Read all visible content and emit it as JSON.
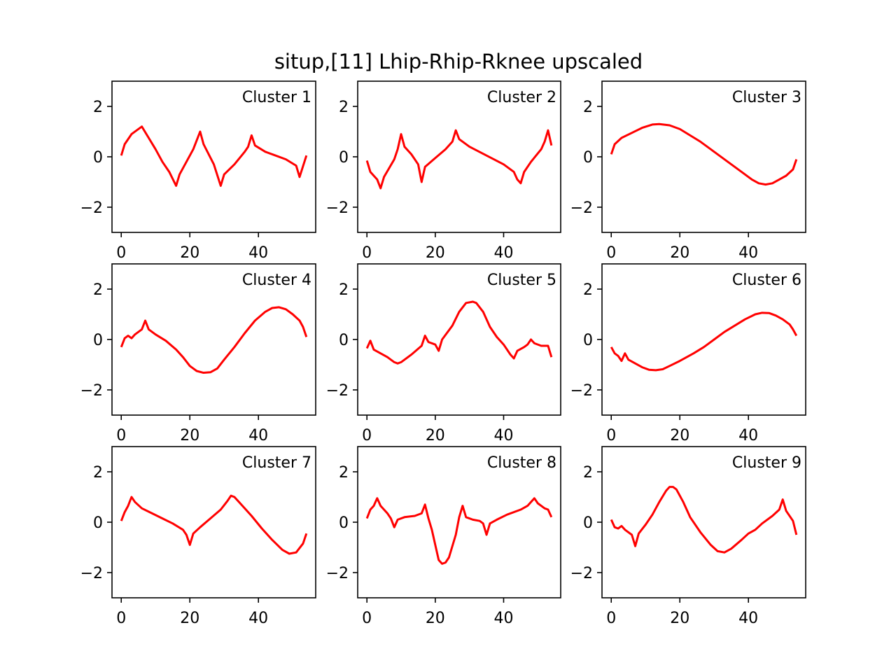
{
  "title": "situp,[11] Lhip-Rhip-Rknee upscaled",
  "chart_data": [
    {
      "type": "line",
      "title": "Cluster 1",
      "xlim": [
        -2.7,
        56.7
      ],
      "ylim": [
        -3,
        3
      ],
      "xticks": [
        0,
        20,
        40
      ],
      "yticks": [
        {
          "value": -2,
          "label": "−2"
        },
        0,
        2
      ],
      "series": [
        {
          "color": "#ff0000",
          "x": [
            0,
            1,
            3,
            6,
            8,
            10,
            12,
            14,
            16,
            17,
            19,
            21,
            23,
            24,
            27,
            29,
            30,
            33,
            36,
            37,
            38,
            39,
            42,
            45,
            48,
            51,
            52,
            54
          ],
          "values": [
            0.05,
            0.5,
            0.9,
            1.2,
            0.75,
            0.3,
            -0.2,
            -0.6,
            -1.15,
            -0.7,
            -0.2,
            0.3,
            1.0,
            0.5,
            -0.3,
            -1.15,
            -0.7,
            -0.3,
            0.2,
            0.4,
            0.85,
            0.45,
            0.2,
            0.05,
            -0.1,
            -0.35,
            -0.8,
            0.05
          ]
        }
      ]
    },
    {
      "type": "line",
      "title": "Cluster 2",
      "xlim": [
        -2.7,
        56.7
      ],
      "ylim": [
        -3,
        3
      ],
      "xticks": [
        0,
        20,
        40
      ],
      "yticks": [
        {
          "value": -2,
          "label": "−2"
        },
        0,
        2
      ],
      "series": [
        {
          "color": "#ff0000",
          "x": [
            0,
            1,
            3,
            4,
            5,
            8,
            9,
            10,
            11,
            13,
            15,
            16,
            17,
            20,
            23,
            25,
            26,
            27,
            30,
            35,
            40,
            43,
            44,
            45,
            46,
            48,
            51,
            52,
            53,
            54
          ],
          "values": [
            -0.15,
            -0.6,
            -0.9,
            -1.25,
            -0.8,
            -0.1,
            0.3,
            0.9,
            0.4,
            0.1,
            -0.3,
            -1.0,
            -0.4,
            -0.05,
            0.3,
            0.6,
            1.05,
            0.7,
            0.4,
            0.05,
            -0.3,
            -0.6,
            -0.9,
            -1.05,
            -0.6,
            -0.2,
            0.3,
            0.6,
            1.05,
            0.45
          ]
        }
      ]
    },
    {
      "type": "line",
      "title": "Cluster 3",
      "xlim": [
        -2.7,
        56.7
      ],
      "ylim": [
        -3,
        3
      ],
      "xticks": [
        0,
        20,
        40
      ],
      "yticks": [
        {
          "value": -2,
          "label": "−2"
        },
        0,
        2
      ],
      "series": [
        {
          "color": "#ff0000",
          "x": [
            0,
            1,
            3,
            6,
            9,
            12,
            14,
            17,
            20,
            23,
            26,
            30,
            34,
            38,
            41,
            43,
            45,
            47,
            49,
            51,
            53,
            54
          ],
          "values": [
            0.1,
            0.5,
            0.75,
            0.95,
            1.15,
            1.28,
            1.3,
            1.25,
            1.1,
            0.85,
            0.6,
            0.2,
            -0.2,
            -0.6,
            -0.9,
            -1.05,
            -1.1,
            -1.05,
            -0.9,
            -0.75,
            -0.5,
            -0.1
          ]
        }
      ]
    },
    {
      "type": "line",
      "title": "Cluster 4",
      "xlim": [
        -2.7,
        56.7
      ],
      "ylim": [
        -3,
        3
      ],
      "xticks": [
        0,
        20,
        40
      ],
      "yticks": [
        {
          "value": -2,
          "label": "−2"
        },
        0,
        2
      ],
      "series": [
        {
          "color": "#ff0000",
          "x": [
            0,
            1,
            2,
            3,
            4,
            5,
            6,
            7,
            8,
            10,
            13,
            16,
            18,
            20,
            22,
            24,
            26,
            28,
            30,
            33,
            36,
            39,
            42,
            44,
            46,
            48,
            50,
            52,
            53,
            54
          ],
          "values": [
            -0.3,
            0.05,
            0.15,
            0.05,
            0.2,
            0.3,
            0.4,
            0.75,
            0.4,
            0.2,
            -0.05,
            -0.4,
            -0.7,
            -1.05,
            -1.25,
            -1.32,
            -1.3,
            -1.15,
            -0.8,
            -0.3,
            0.25,
            0.75,
            1.1,
            1.25,
            1.28,
            1.2,
            1.0,
            0.75,
            0.5,
            0.1
          ]
        }
      ]
    },
    {
      "type": "line",
      "title": "Cluster 5",
      "xlim": [
        -2.7,
        56.7
      ],
      "ylim": [
        -3,
        3
      ],
      "xticks": [
        0,
        20,
        40
      ],
      "yticks": [
        {
          "value": -2,
          "label": "−2"
        },
        0,
        2
      ],
      "series": [
        {
          "color": "#ff0000",
          "x": [
            0,
            1,
            2,
            4,
            6,
            8,
            9,
            10,
            13,
            16,
            17,
            18,
            20,
            21,
            22,
            25,
            27,
            29,
            31,
            32,
            34,
            36,
            38,
            40,
            42,
            43,
            44,
            46,
            47,
            48,
            49,
            51,
            53,
            54
          ],
          "values": [
            -0.35,
            -0.05,
            -0.4,
            -0.55,
            -0.7,
            -0.9,
            -0.95,
            -0.9,
            -0.6,
            -0.25,
            0.15,
            -0.1,
            -0.2,
            -0.45,
            0.0,
            0.55,
            1.1,
            1.45,
            1.5,
            1.45,
            1.1,
            0.5,
            0.1,
            -0.2,
            -0.6,
            -0.75,
            -0.45,
            -0.3,
            -0.2,
            0.0,
            -0.15,
            -0.25,
            -0.25,
            -0.7
          ]
        }
      ]
    },
    {
      "type": "line",
      "title": "Cluster 6",
      "xlim": [
        -2.7,
        56.7
      ],
      "ylim": [
        -3,
        3
      ],
      "xticks": [
        0,
        20,
        40
      ],
      "yticks": [
        {
          "value": -2,
          "label": "−2"
        },
        0,
        2
      ],
      "series": [
        {
          "color": "#ff0000",
          "x": [
            0,
            1,
            2,
            3,
            4,
            5,
            7,
            9,
            11,
            13,
            15,
            17,
            20,
            24,
            27,
            30,
            33,
            36,
            39,
            42,
            44,
            46,
            48,
            50,
            52,
            53,
            54
          ],
          "values": [
            -0.3,
            -0.55,
            -0.65,
            -0.85,
            -0.55,
            -0.8,
            -0.95,
            -1.1,
            -1.2,
            -1.22,
            -1.18,
            -1.05,
            -0.85,
            -0.55,
            -0.3,
            0.0,
            0.3,
            0.55,
            0.8,
            1.0,
            1.06,
            1.05,
            0.95,
            0.8,
            0.6,
            0.4,
            0.15
          ]
        }
      ]
    },
    {
      "type": "line",
      "title": "Cluster 7",
      "xlim": [
        -2.7,
        56.7
      ],
      "ylim": [
        -3,
        3
      ],
      "xticks": [
        0,
        20,
        40
      ],
      "yticks": [
        {
          "value": -2,
          "label": "−2"
        },
        0,
        2
      ],
      "series": [
        {
          "color": "#ff0000",
          "x": [
            0,
            1,
            2,
            3,
            4,
            6,
            9,
            12,
            15,
            18,
            19,
            20,
            21,
            23,
            26,
            29,
            31,
            32,
            33,
            35,
            38,
            41,
            44,
            47,
            49,
            51,
            53,
            54
          ],
          "values": [
            0.05,
            0.4,
            0.65,
            1.0,
            0.8,
            0.55,
            0.35,
            0.15,
            -0.05,
            -0.3,
            -0.5,
            -0.9,
            -0.45,
            -0.2,
            0.15,
            0.5,
            0.85,
            1.05,
            1.0,
            0.7,
            0.25,
            -0.25,
            -0.7,
            -1.1,
            -1.25,
            -1.2,
            -0.85,
            -0.45
          ]
        }
      ]
    },
    {
      "type": "line",
      "title": "Cluster 8",
      "xlim": [
        -2.7,
        56.7
      ],
      "ylim": [
        -3,
        3
      ],
      "xticks": [
        0,
        20,
        40
      ],
      "yticks": [
        {
          "value": -2,
          "label": "−2"
        },
        0,
        2
      ],
      "series": [
        {
          "color": "#ff0000",
          "x": [
            0,
            1,
            2,
            3,
            4,
            6,
            7,
            8,
            9,
            11,
            14,
            16,
            17,
            18,
            19,
            20,
            21,
            22,
            23,
            24,
            26,
            27,
            28,
            29,
            31,
            33,
            34,
            35,
            36,
            38,
            41,
            45,
            47,
            49,
            50,
            52,
            53,
            54
          ],
          "values": [
            0.15,
            0.5,
            0.65,
            0.95,
            0.65,
            0.35,
            0.15,
            -0.2,
            0.1,
            0.2,
            0.25,
            0.35,
            0.7,
            0.15,
            -0.3,
            -0.9,
            -1.5,
            -1.65,
            -1.6,
            -1.4,
            -0.5,
            0.2,
            0.65,
            0.2,
            0.1,
            0.05,
            -0.05,
            -0.5,
            -0.05,
            0.1,
            0.3,
            0.5,
            0.65,
            0.95,
            0.75,
            0.55,
            0.5,
            0.2
          ]
        }
      ]
    },
    {
      "type": "line",
      "title": "Cluster 9",
      "xlim": [
        -2.7,
        56.7
      ],
      "ylim": [
        -3,
        3
      ],
      "xticks": [
        0,
        20,
        40
      ],
      "yticks": [
        {
          "value": -2,
          "label": "−2"
        },
        0,
        2
      ],
      "series": [
        {
          "color": "#ff0000",
          "x": [
            0,
            1,
            2,
            3,
            4,
            6,
            7,
            8,
            10,
            12,
            14,
            16,
            17,
            18,
            19,
            21,
            23,
            26,
            29,
            31,
            33,
            35,
            38,
            40,
            42,
            44,
            47,
            49,
            50,
            51,
            53,
            54
          ],
          "values": [
            0.1,
            -0.2,
            -0.25,
            -0.15,
            -0.3,
            -0.5,
            -0.95,
            -0.45,
            -0.1,
            0.3,
            0.8,
            1.25,
            1.4,
            1.4,
            1.3,
            0.8,
            0.2,
            -0.4,
            -0.9,
            -1.15,
            -1.2,
            -1.05,
            -0.7,
            -0.45,
            -0.3,
            -0.05,
            0.25,
            0.5,
            0.9,
            0.45,
            0.05,
            -0.5
          ]
        }
      ]
    }
  ]
}
